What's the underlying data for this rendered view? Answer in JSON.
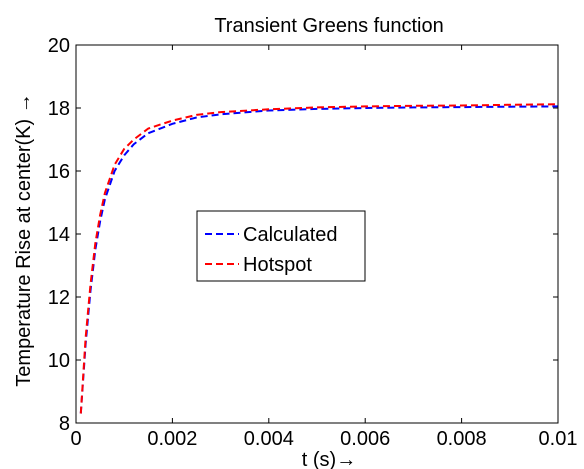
{
  "chart_data": {
    "type": "line",
    "title": "Transient Greens function",
    "xlabel": "t (s)→",
    "ylabel": "Temperature Rise at center(K) →",
    "xlim": [
      0,
      0.01
    ],
    "ylim": [
      8,
      20
    ],
    "x_ticks": [
      0,
      0.002,
      0.004,
      0.006,
      0.008,
      0.01
    ],
    "x_tick_labels": [
      "0",
      "0.002",
      "0.004",
      "0.006",
      "0.008",
      "0.01"
    ],
    "y_ticks": [
      8,
      10,
      12,
      14,
      16,
      18,
      20
    ],
    "y_tick_labels": [
      "8",
      "10",
      "12",
      "14",
      "16",
      "18",
      "20"
    ],
    "grid": false,
    "legend_position": "center",
    "series": [
      {
        "name": "Calculated",
        "color": "#0000ff",
        "line_style": "dashed",
        "x": [
          0.0001,
          0.0002,
          0.0003,
          0.0004,
          0.0005,
          0.0006,
          0.0008,
          0.001,
          0.0012,
          0.0015,
          0.002,
          0.0025,
          0.003,
          0.004,
          0.005,
          0.006,
          0.007,
          0.008,
          0.009,
          0.01
        ],
        "y": [
          8.3,
          10.5,
          12.2,
          13.5,
          14.4,
          15.1,
          16.0,
          16.5,
          16.85,
          17.2,
          17.5,
          17.7,
          17.8,
          17.92,
          17.97,
          18.0,
          18.02,
          18.03,
          18.04,
          18.05
        ]
      },
      {
        "name": "Hotspot",
        "color": "#ff0000",
        "line_style": "dashed",
        "x": [
          0.0001,
          0.0002,
          0.0003,
          0.0004,
          0.0005,
          0.0006,
          0.0008,
          0.001,
          0.0012,
          0.0015,
          0.002,
          0.0025,
          0.003,
          0.004,
          0.005,
          0.006,
          0.007,
          0.008,
          0.009,
          0.01
        ],
        "y": [
          8.3,
          10.7,
          12.4,
          13.7,
          14.6,
          15.3,
          16.2,
          16.7,
          17.0,
          17.35,
          17.6,
          17.78,
          17.87,
          17.96,
          18.02,
          18.05,
          18.07,
          18.08,
          18.1,
          18.12
        ]
      }
    ]
  }
}
